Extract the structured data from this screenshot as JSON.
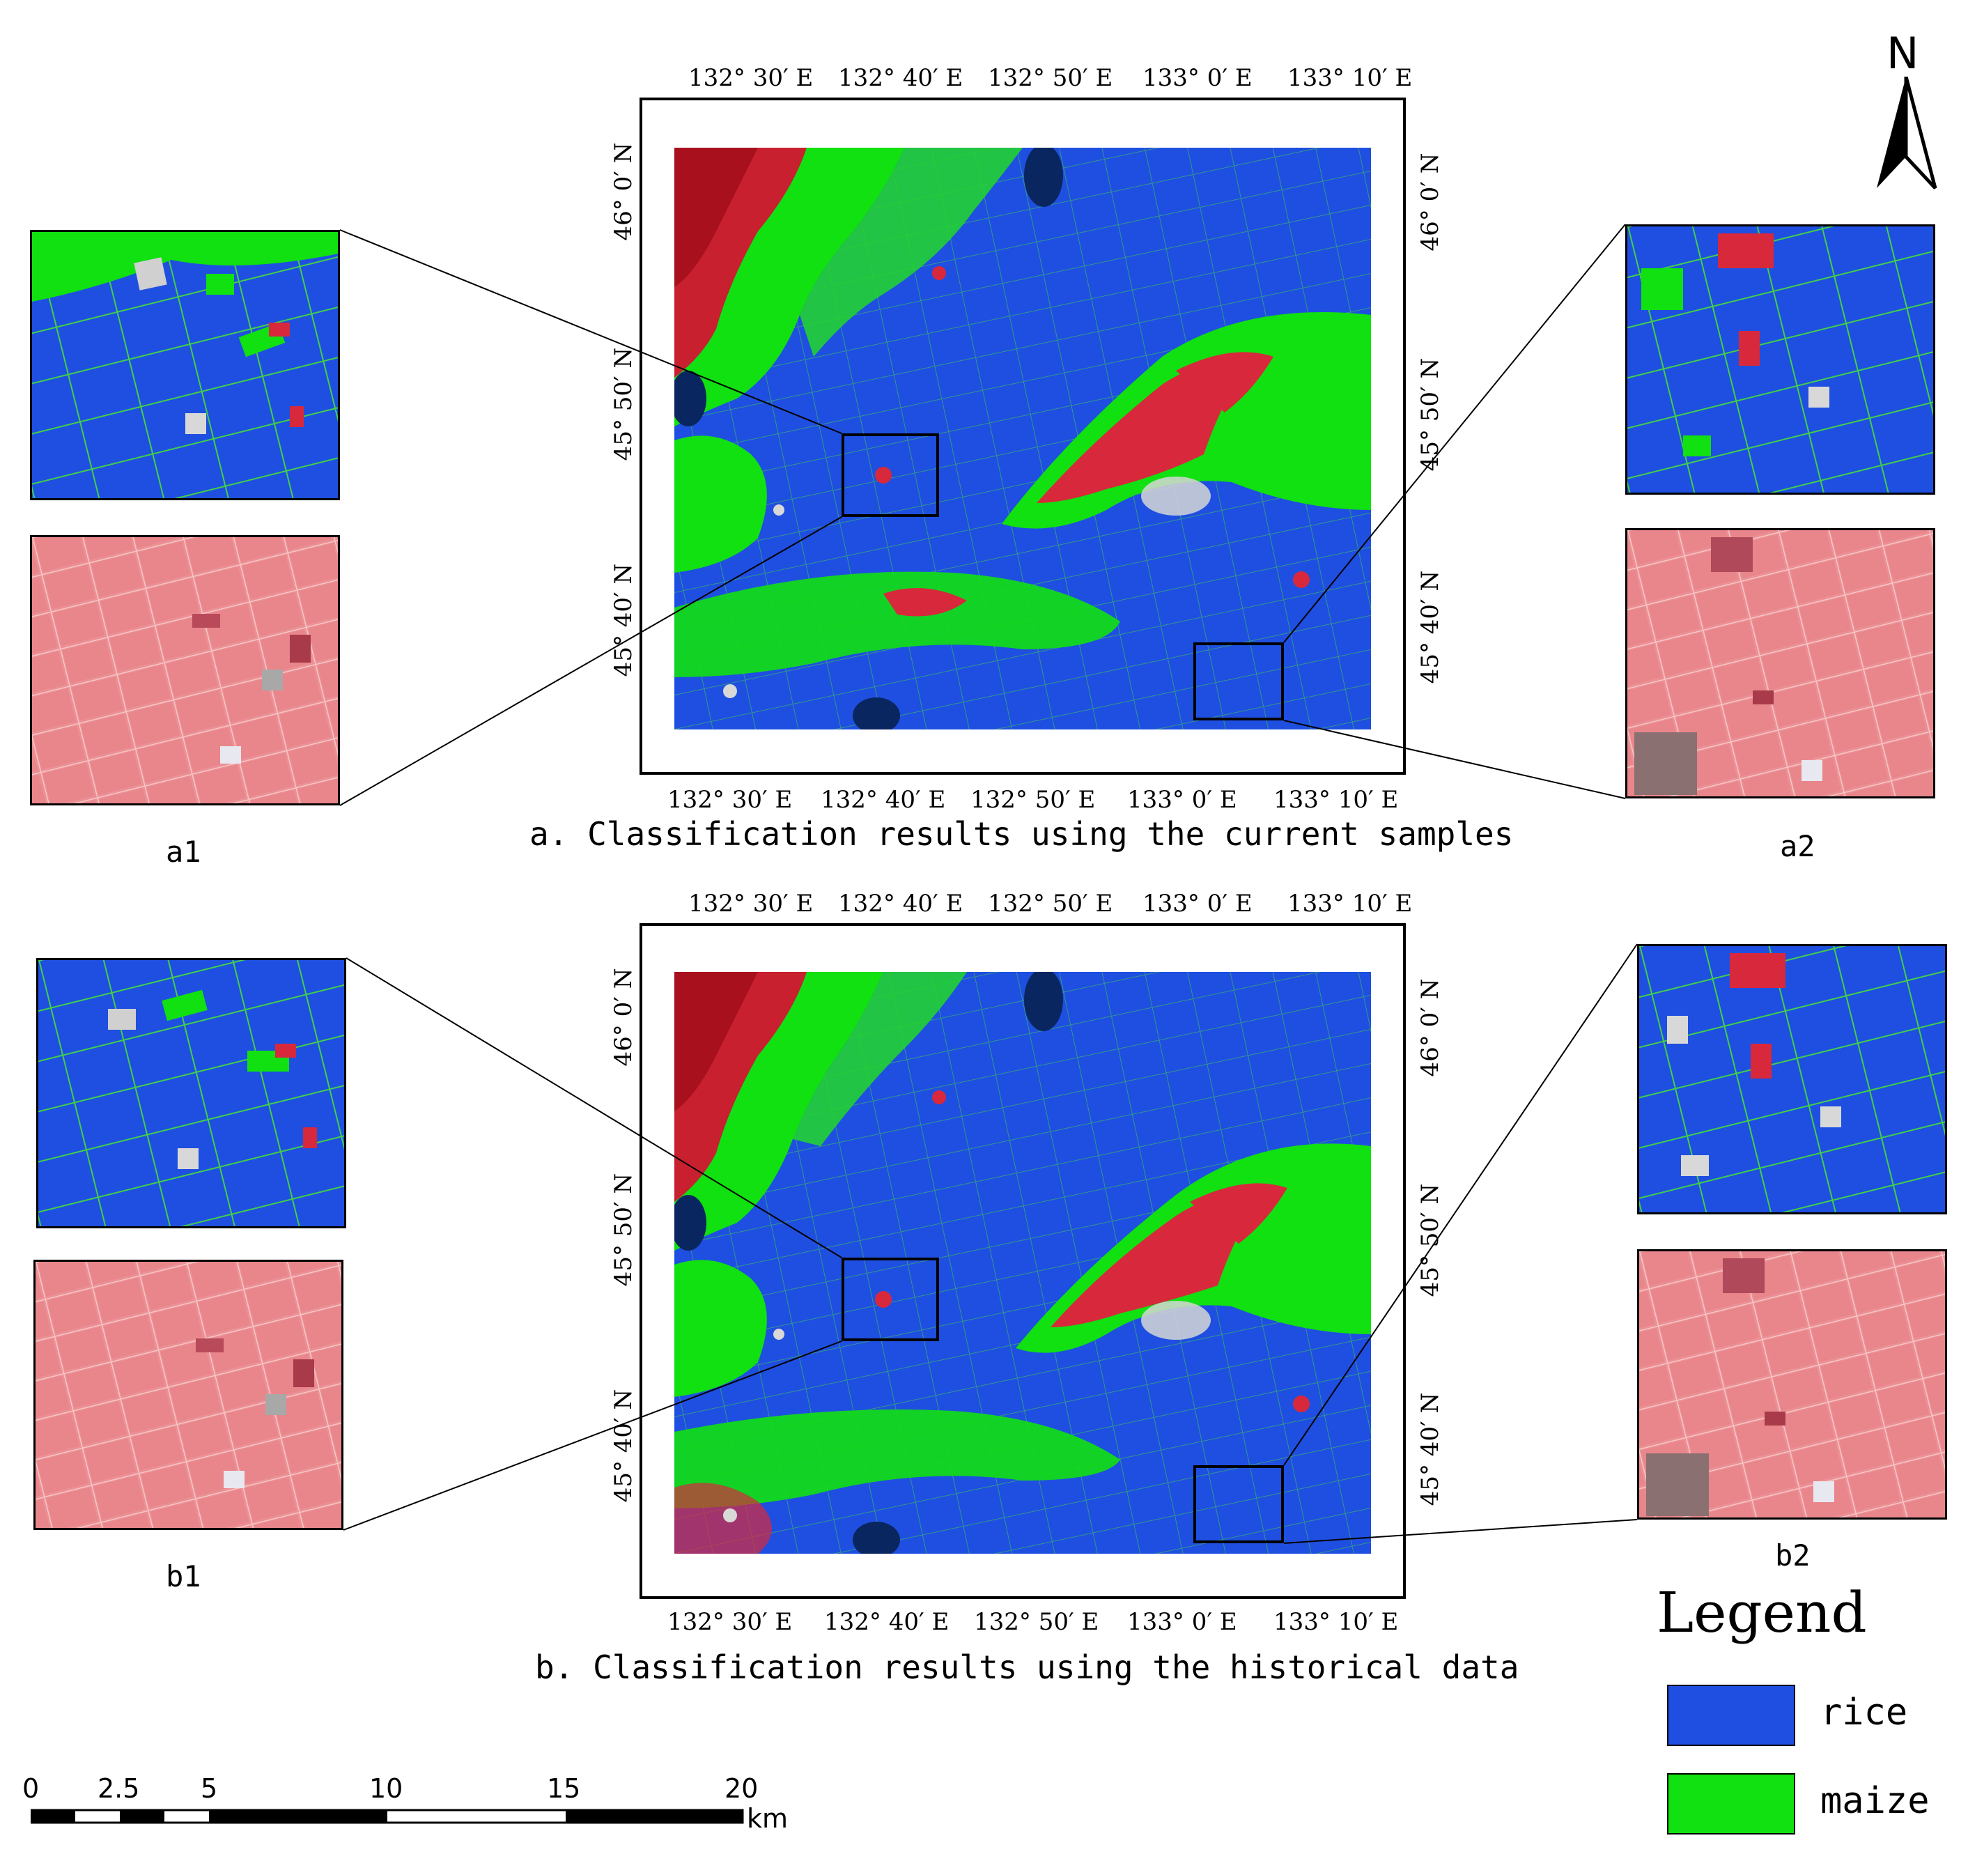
{
  "panels": {
    "a": {
      "caption": "a. Classification results using the current samples",
      "top_lon_labels": [
        "132° 30′ E",
        "132° 40′ E",
        "132° 50′ E",
        "133° 0′ E",
        "133° 10′ E"
      ],
      "bottom_lon_labels": [
        "132° 30′ E",
        "132° 40′ E",
        "132° 50′ E",
        "133° 0′ E",
        "133° 10′ E"
      ],
      "left_lat_labels": [
        "46° 0′ N",
        "45° 50′ N",
        "45° 40′ N"
      ],
      "right_lat_labels": [
        "46° 0′ N",
        "45° 50′ N",
        "45° 40′ N"
      ],
      "inset_left_label": "a1",
      "inset_right_label": "a2"
    },
    "b": {
      "caption": "b. Classification results using the historical data",
      "top_lon_labels": [
        "132° 30′ E",
        "132° 40′ E",
        "132° 50′ E",
        "133° 0′ E",
        "133° 10′ E"
      ],
      "bottom_lon_labels": [
        "132° 30′ E",
        "132° 40′ E",
        "132° 50′ E",
        "133° 0′ E",
        "133° 10′ E"
      ],
      "left_lat_labels": [
        "46° 0′ N",
        "45° 50′ N",
        "45° 40′ N"
      ],
      "right_lat_labels": [
        "46° 0′ N",
        "45° 50′ N",
        "45° 40′ N"
      ],
      "inset_left_label": "b1",
      "inset_right_label": "b2"
    }
  },
  "north_arrow": {
    "label": "N",
    "icon": "north-arrow-icon"
  },
  "legend": {
    "title": "Legend",
    "items": [
      {
        "label": "rice",
        "color": "#1f4fe0"
      },
      {
        "label": "maize",
        "color": "#11e011"
      }
    ]
  },
  "scale_bar": {
    "ticks": [
      "0",
      "2.5",
      "5",
      "10",
      "15",
      "20"
    ],
    "unit": "km"
  },
  "colors": {
    "rice": "#1f4fe0",
    "maize": "#11e011",
    "other_red": "#d8283c",
    "false_color_pink": "#e98a8e"
  }
}
